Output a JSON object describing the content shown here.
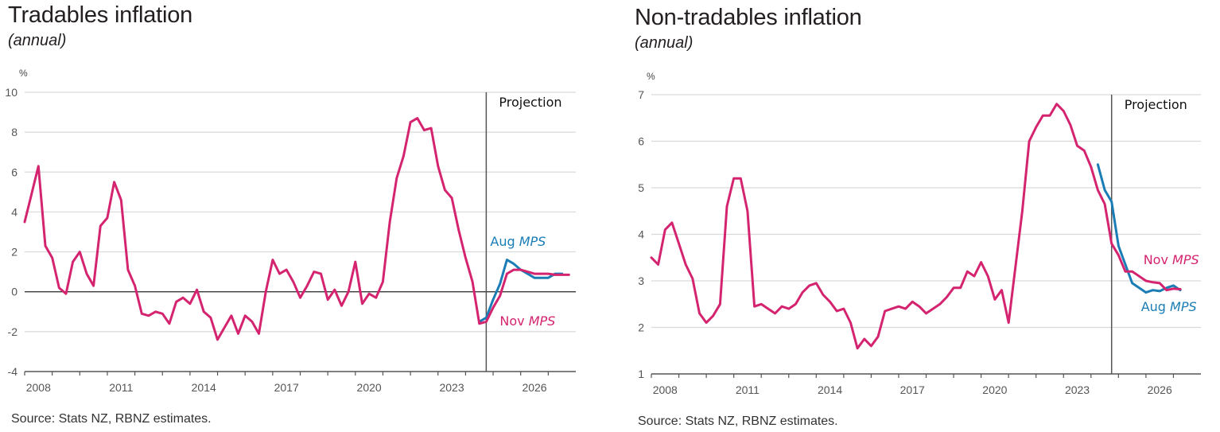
{
  "chart_data": [
    {
      "type": "line",
      "title": "Tradables inflation",
      "subtitle": "(annual)",
      "ylabel": "%",
      "xlabel": "",
      "ylim": [
        -4,
        10
      ],
      "yticks": [
        -4,
        -2,
        0,
        2,
        4,
        6,
        8,
        10
      ],
      "xlim": [
        2008,
        2028
      ],
      "xtick_labels": [
        "2008",
        "2011",
        "2014",
        "2017",
        "2020",
        "2023",
        "2026"
      ],
      "grid": true,
      "projection_start": 2024.75,
      "projection_label": "Projection",
      "source": "Source: Stats NZ, RBNZ estimates.",
      "series": [
        {
          "name": "Nov MPS",
          "label_prefix": "Nov",
          "label_italic": "MPS",
          "color": "#d4246f",
          "x_start": 2008.0,
          "step": 0.25,
          "values": [
            3.5,
            4.9,
            6.3,
            2.3,
            1.7,
            0.2,
            -0.1,
            1.5,
            2.0,
            0.9,
            0.3,
            3.3,
            3.7,
            5.5,
            4.6,
            1.1,
            0.3,
            -1.1,
            -1.2,
            -1.0,
            -1.1,
            -1.6,
            -0.5,
            -0.3,
            -0.6,
            0.1,
            -1.0,
            -1.3,
            -2.4,
            -1.8,
            -1.2,
            -2.1,
            -1.2,
            -1.5,
            -2.1,
            0.0,
            1.6,
            0.9,
            1.1,
            0.5,
            -0.3,
            0.3,
            1.0,
            0.9,
            -0.4,
            0.1,
            -0.7,
            0.0,
            1.5,
            -0.6,
            -0.1,
            -0.3,
            0.5,
            3.5,
            5.7,
            6.8,
            8.5,
            8.7,
            8.1,
            8.2,
            6.3,
            5.1,
            4.7,
            3.1,
            1.7,
            0.5,
            -1.6,
            -1.5,
            -0.8,
            -0.2,
            0.9,
            1.1,
            1.1,
            1.0,
            0.9,
            0.9,
            0.9,
            0.85,
            0.85,
            0.85
          ]
        },
        {
          "name": "Aug MPS",
          "label_prefix": "Aug",
          "label_italic": "MPS",
          "color": "#1a7db5",
          "x_start": 2024.5,
          "step": 0.25,
          "values": [
            -1.5,
            -1.3,
            -0.4,
            0.4,
            1.6,
            1.4,
            1.1,
            0.9,
            0.7,
            0.7,
            0.7,
            0.9,
            0.9
          ]
        }
      ]
    },
    {
      "type": "line",
      "title": "Non-tradables inflation",
      "subtitle": "(annual)",
      "ylabel": "%",
      "xlabel": "",
      "ylim": [
        1,
        7
      ],
      "yticks": [
        1,
        2,
        3,
        4,
        5,
        6,
        7
      ],
      "xlim": [
        2008,
        2028
      ],
      "xtick_labels": [
        "2008",
        "2011",
        "2014",
        "2017",
        "2020",
        "2023",
        "2026"
      ],
      "grid": true,
      "projection_start": 2024.75,
      "projection_label": "Projection",
      "source": "Source: Stats NZ, RBNZ estimates.",
      "series": [
        {
          "name": "Nov MPS",
          "label_prefix": "Nov",
          "label_italic": "MPS",
          "color": "#d4246f",
          "x_start": 2008.0,
          "step": 0.25,
          "values": [
            3.5,
            3.35,
            4.1,
            4.25,
            3.8,
            3.35,
            3.05,
            2.3,
            2.1,
            2.25,
            2.5,
            4.6,
            5.2,
            5.2,
            4.5,
            2.45,
            2.5,
            2.4,
            2.3,
            2.45,
            2.4,
            2.5,
            2.75,
            2.9,
            2.95,
            2.7,
            2.55,
            2.35,
            2.4,
            2.1,
            1.55,
            1.75,
            1.6,
            1.8,
            2.35,
            2.4,
            2.45,
            2.4,
            2.55,
            2.45,
            2.3,
            2.4,
            2.5,
            2.65,
            2.85,
            2.85,
            3.2,
            3.1,
            3.4,
            3.1,
            2.6,
            2.8,
            2.1,
            3.3,
            4.5,
            6.0,
            6.3,
            6.55,
            6.55,
            6.8,
            6.65,
            6.35,
            5.9,
            5.8,
            5.45,
            4.95,
            4.65,
            3.8,
            3.55,
            3.2,
            3.2,
            3.1,
            3.0,
            2.97,
            2.95,
            2.8,
            2.83,
            2.82
          ]
        },
        {
          "name": "Aug MPS",
          "label_prefix": "Aug",
          "label_italic": "MPS",
          "color": "#1a7db5",
          "x_start": 2024.25,
          "step": 0.25,
          "values": [
            5.5,
            4.95,
            4.7,
            3.75,
            3.35,
            2.95,
            2.85,
            2.75,
            2.8,
            2.78,
            2.85,
            2.9,
            2.8
          ]
        }
      ]
    }
  ]
}
